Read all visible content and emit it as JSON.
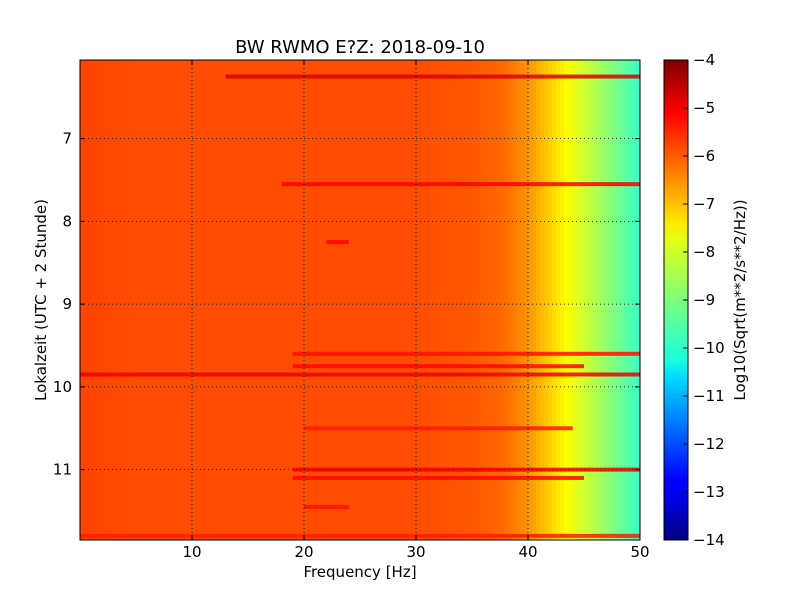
{
  "chart_data": {
    "type": "heatmap",
    "title": "BW RWMO E?Z: 2018-09-10",
    "xlabel": "Frequency [Hz]",
    "ylabel": "Lokalzeit (UTC + 2 Stunde)",
    "xlim": [
      0,
      50
    ],
    "ylim": [
      11.85,
      6.05
    ],
    "y_inverted": true,
    "x_ticks": [
      10,
      20,
      30,
      40,
      50
    ],
    "y_ticks": [
      7,
      8,
      9,
      10,
      11
    ],
    "grid": true,
    "colormap": "jet",
    "colorbar": {
      "label": "Log10(Sqrt(m**2/s**2/Hz))",
      "range": [
        -14,
        -4
      ],
      "ticks": [
        -4,
        -5,
        -6,
        -7,
        -8,
        -9,
        -10,
        -11,
        -12,
        -13,
        -14
      ]
    },
    "spectrum_profile": {
      "frequency_hz": [
        0,
        5,
        10,
        15,
        20,
        25,
        30,
        35,
        38,
        40,
        42,
        44,
        46,
        48,
        50
      ],
      "value": [
        -5.9,
        -6.0,
        -6.0,
        -6.0,
        -6.0,
        -6.0,
        -6.0,
        -6.1,
        -6.3,
        -6.7,
        -7.3,
        -7.9,
        -8.5,
        -9.1,
        -9.7
      ]
    },
    "high_amplitude_bands": [
      {
        "time": 6.25,
        "freq_range": [
          13,
          50
        ],
        "value": -4.9
      },
      {
        "time": 7.55,
        "freq_range": [
          18,
          50
        ],
        "value": -5.2
      },
      {
        "time": 8.25,
        "freq_range": [
          22,
          24
        ],
        "value": -5.3
      },
      {
        "time": 9.6,
        "freq_range": [
          19,
          50
        ],
        "value": -5.4
      },
      {
        "time": 9.75,
        "freq_range": [
          19,
          45
        ],
        "value": -5.3
      },
      {
        "time": 9.85,
        "freq_range": [
          0,
          50
        ],
        "value": -5.1
      },
      {
        "time": 10.5,
        "freq_range": [
          20,
          44
        ],
        "value": -5.5
      },
      {
        "time": 11.0,
        "freq_range": [
          19,
          50
        ],
        "value": -5.1
      },
      {
        "time": 11.1,
        "freq_range": [
          19,
          45
        ],
        "value": -5.3
      },
      {
        "time": 11.45,
        "freq_range": [
          20,
          24
        ],
        "value": -5.4
      },
      {
        "time": 11.8,
        "freq_range": [
          0,
          50
        ],
        "value": -5.5
      }
    ]
  }
}
